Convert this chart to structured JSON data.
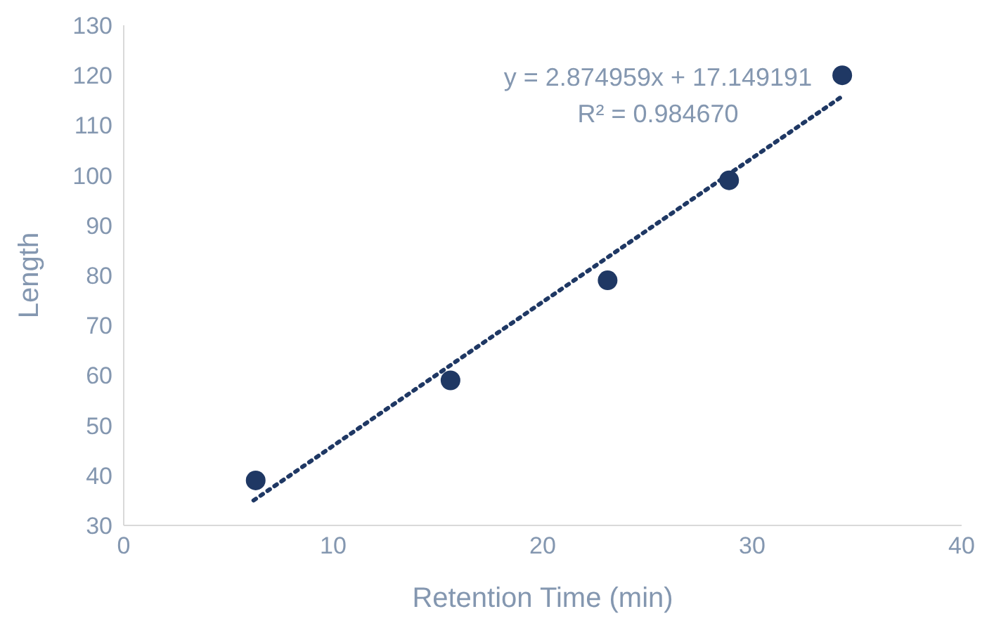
{
  "chart_data": {
    "type": "scatter",
    "xlabel": "Retention Time (min)",
    "ylabel": "Length",
    "xlim": [
      0,
      40
    ],
    "xticks": [
      0,
      10,
      20,
      30,
      40
    ],
    "ylim": [
      30,
      130
    ],
    "yticks": [
      30,
      40,
      50,
      60,
      70,
      80,
      90,
      100,
      110,
      120,
      130
    ],
    "grid": false,
    "annotations": [
      "y = 2.874959x + 17.149191",
      "R² = 0.984670"
    ],
    "series": [
      {
        "marker": "circle",
        "color": "#1f3864",
        "x": [
          6.3,
          15.6,
          23.1,
          28.9,
          34.3
        ],
        "values": [
          39,
          59,
          79,
          99,
          120
        ]
      },
      {
        "type": "line",
        "marker": "none",
        "line_style": "dotted",
        "color": "#1f3864",
        "x": [
          6.2,
          34.3
        ],
        "values": [
          35,
          115.8
        ]
      }
    ]
  }
}
